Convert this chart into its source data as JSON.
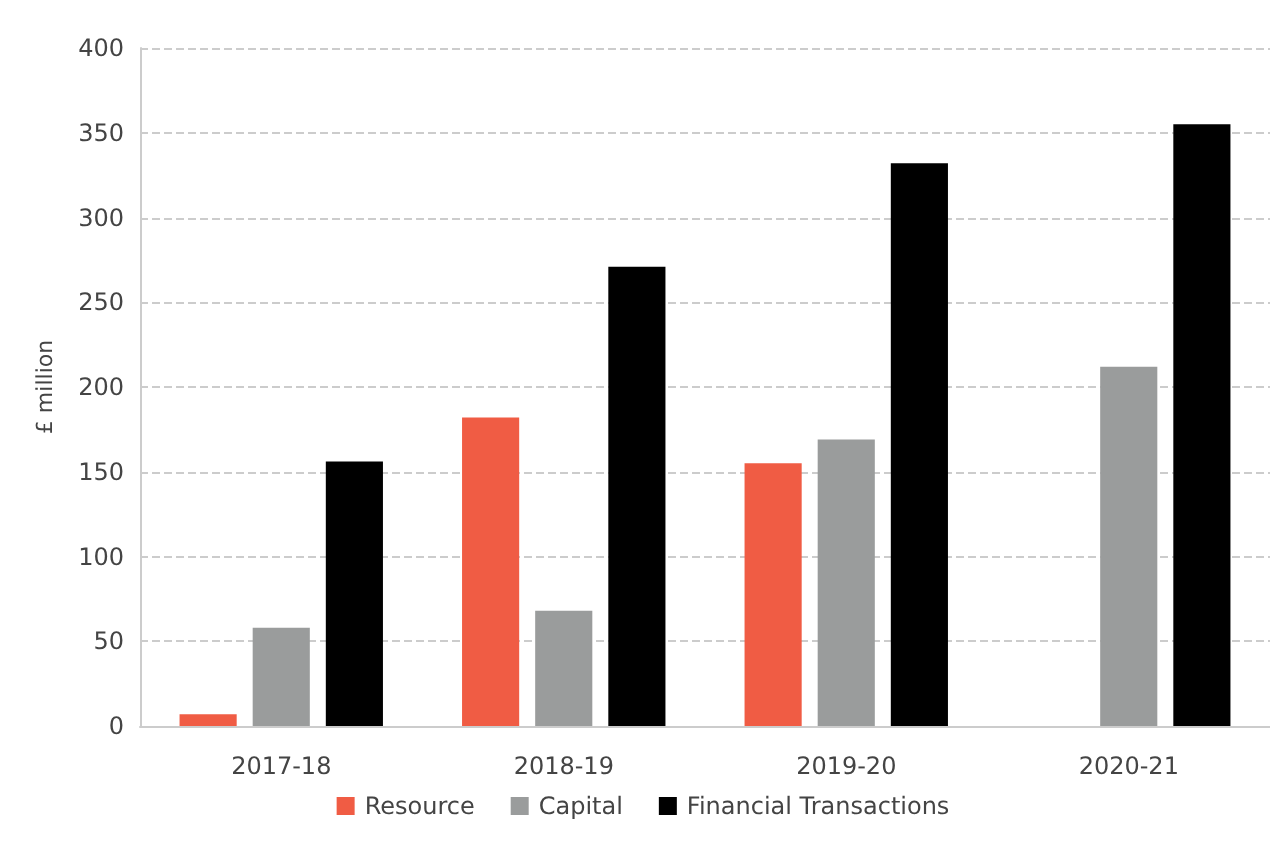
{
  "chart_data": {
    "type": "bar",
    "ylabel": "£ million",
    "categories": [
      "2017-18",
      "2018-19",
      "2019-20",
      "2020-21"
    ],
    "series": [
      {
        "name": "Resource",
        "color": "#f05c44",
        "values": [
          7,
          182,
          155,
          null
        ]
      },
      {
        "name": "Capital",
        "color": "#9a9c9c",
        "values": [
          58,
          68,
          169,
          212
        ]
      },
      {
        "name": "Financial Transactions",
        "color": "#000000",
        "values": [
          156,
          271,
          332,
          355
        ]
      }
    ],
    "ylim": [
      0,
      400
    ],
    "yticks": [
      0,
      50,
      100,
      150,
      200,
      250,
      300,
      350,
      400
    ],
    "grid": "y",
    "legend": "bottom"
  }
}
